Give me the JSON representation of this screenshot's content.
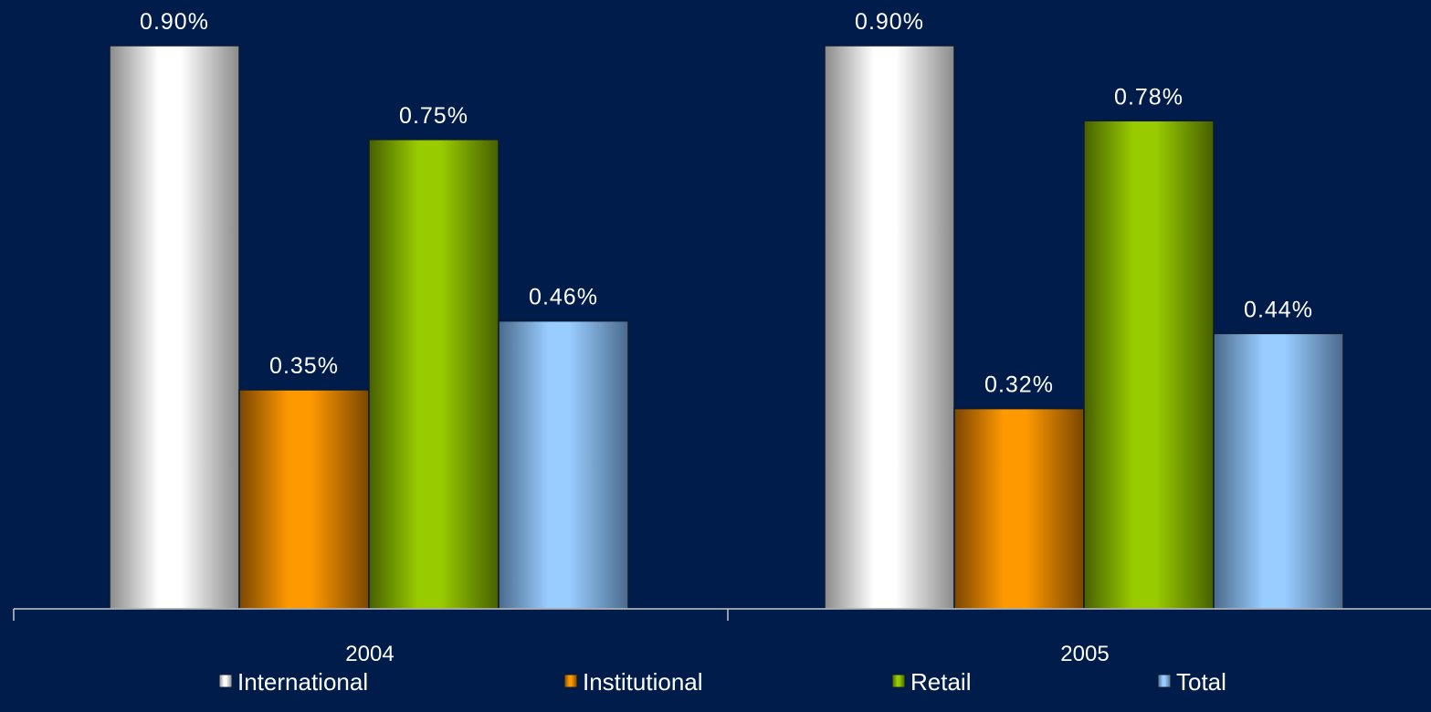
{
  "chart_data": {
    "type": "bar",
    "categories": [
      "2004",
      "2005"
    ],
    "series": [
      {
        "name": "International",
        "values": [
          0.9,
          0.9
        ],
        "labels": [
          "0.90%",
          "0.90%"
        ],
        "color": "#ffffff",
        "shade": "#8a8a8a"
      },
      {
        "name": "Institutional",
        "values": [
          0.35,
          0.32
        ],
        "labels": [
          "0.35%",
          "0.32%"
        ],
        "color": "#ff9900",
        "shade": "#7a4600"
      },
      {
        "name": "Retail",
        "values": [
          0.75,
          0.78
        ],
        "labels": [
          "0.75%",
          "0.78%"
        ],
        "color": "#99cc00",
        "shade": "#476000"
      },
      {
        "name": "Total",
        "values": [
          0.46,
          0.44
        ],
        "labels": [
          "0.46%",
          "0.44%"
        ],
        "color": "#99ccff",
        "shade": "#4a6a8c"
      }
    ],
    "ylim": [
      0,
      0.9
    ],
    "grid": false,
    "legend_position": "bottom",
    "background": "#001c4a"
  }
}
